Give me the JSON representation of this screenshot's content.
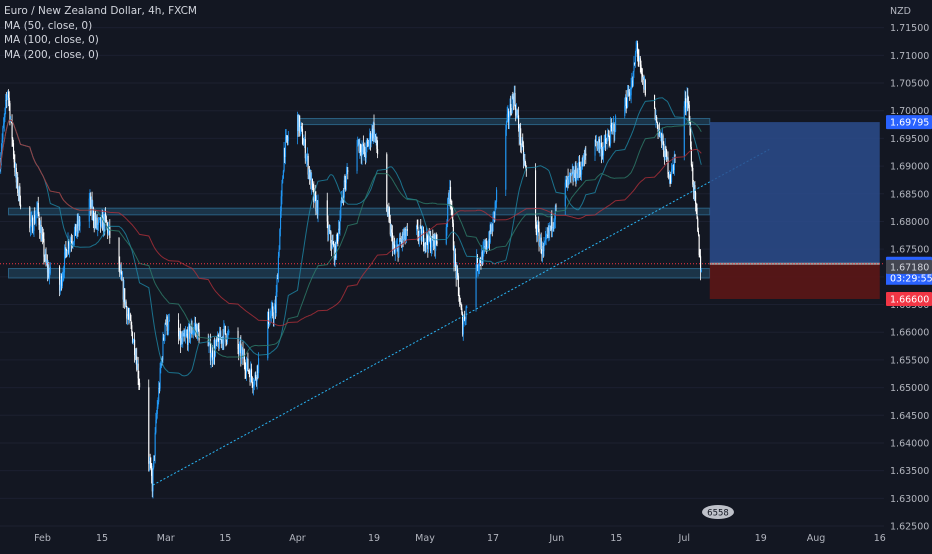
{
  "chart_data": {
    "type": "candlestick",
    "title": "Euro / New Zealand Dollar, 4h, FXCM",
    "indicators": [
      "MA (50, close, 0)",
      "MA (100, close, 0)",
      "MA (200, close, 0)"
    ],
    "currency": "NZD",
    "ylim": [
      1.625,
      1.72
    ],
    "y_ticks": [
      1.715,
      1.71,
      1.705,
      1.7,
      1.695,
      1.69,
      1.685,
      1.68,
      1.675,
      1.67,
      1.665,
      1.66,
      1.655,
      1.65,
      1.645,
      1.64,
      1.635,
      1.63,
      1.625
    ],
    "y_tick_labels": [
      "1.71500",
      "1.71000",
      "1.70500",
      "1.70000",
      "1.69500",
      "1.69000",
      "1.68500",
      "1.68000",
      "1.67500",
      "1.67000",
      "1.66500",
      "1.66000",
      "1.65500",
      "1.65000",
      "1.64500",
      "1.64000",
      "1.63500",
      "1.63000",
      "1.62500"
    ],
    "x_labels": [
      "Feb",
      "15",
      "Mar",
      "15",
      "Apr",
      "19",
      "May",
      "17",
      "Jun",
      "15",
      "Jul",
      "19",
      "Aug",
      "16"
    ],
    "x_dates": [
      "2024-02-01",
      "2024-02-15",
      "2024-03-01",
      "2024-03-15",
      "2024-04-01",
      "2024-04-19",
      "2024-05-01",
      "2024-05-17",
      "2024-06-01",
      "2024-06-15",
      "2024-07-01",
      "2024-07-19",
      "2024-08-01",
      "2024-08-16"
    ],
    "x_range": [
      "2024-01-22",
      "2024-08-17"
    ],
    "price_path": [
      [
        "2024-01-22",
        1.69
      ],
      [
        "2024-01-24",
        1.704
      ],
      [
        "2024-01-26",
        1.687
      ],
      [
        "2024-01-29",
        1.678
      ],
      [
        "2024-01-31",
        1.682
      ],
      [
        "2024-02-02",
        1.672
      ],
      [
        "2024-02-05",
        1.667
      ],
      [
        "2024-02-07",
        1.676
      ],
      [
        "2024-02-09",
        1.678
      ],
      [
        "2024-02-12",
        1.684
      ],
      [
        "2024-02-14",
        1.679
      ],
      [
        "2024-02-16",
        1.68
      ],
      [
        "2024-02-19",
        1.672
      ],
      [
        "2024-02-21",
        1.664
      ],
      [
        "2024-02-23",
        1.657
      ],
      [
        "2024-02-26",
        1.638
      ],
      [
        "2024-02-27",
        1.6324
      ],
      [
        "2024-02-28",
        1.645
      ],
      [
        "2024-03-01",
        1.662
      ],
      [
        "2024-03-05",
        1.658
      ],
      [
        "2024-03-08",
        1.661
      ],
      [
        "2024-03-12",
        1.656
      ],
      [
        "2024-03-15",
        1.66
      ],
      [
        "2024-03-19",
        1.656
      ],
      [
        "2024-03-22",
        1.651
      ],
      [
        "2024-03-25",
        1.662
      ],
      [
        "2024-03-27",
        1.664
      ],
      [
        "2024-03-29",
        1.693
      ],
      [
        "2024-04-01",
        1.699
      ],
      [
        "2024-04-03",
        1.693
      ],
      [
        "2024-04-05",
        1.684
      ],
      [
        "2024-04-08",
        1.679
      ],
      [
        "2024-04-10",
        1.674
      ],
      [
        "2024-04-12",
        1.686
      ],
      [
        "2024-04-15",
        1.695
      ],
      [
        "2024-04-17",
        1.692
      ],
      [
        "2024-04-19",
        1.697
      ],
      [
        "2024-04-22",
        1.683
      ],
      [
        "2024-04-24",
        1.674
      ],
      [
        "2024-04-26",
        1.677
      ],
      [
        "2024-04-29",
        1.678
      ],
      [
        "2024-05-01",
        1.677
      ],
      [
        "2024-05-03",
        1.676
      ],
      [
        "2024-05-06",
        1.678
      ],
      [
        "2024-05-07",
        1.687
      ],
      [
        "2024-05-08",
        1.674
      ],
      [
        "2024-05-10",
        1.6612
      ],
      [
        "2024-05-13",
        1.672
      ],
      [
        "2024-05-15",
        1.674
      ],
      [
        "2024-05-17",
        1.679
      ],
      [
        "2024-05-20",
        1.696
      ],
      [
        "2024-05-22",
        1.703
      ],
      [
        "2024-05-24",
        1.693
      ],
      [
        "2024-05-27",
        1.68
      ],
      [
        "2024-05-29",
        1.674
      ],
      [
        "2024-05-31",
        1.68
      ],
      [
        "2024-06-03",
        1.686
      ],
      [
        "2024-06-05",
        1.688
      ],
      [
        "2024-06-07",
        1.69
      ],
      [
        "2024-06-10",
        1.695
      ],
      [
        "2024-06-12",
        1.693
      ],
      [
        "2024-06-14",
        1.696
      ],
      [
        "2024-06-17",
        1.701
      ],
      [
        "2024-06-19",
        1.705
      ],
      [
        "2024-06-20",
        1.712
      ],
      [
        "2024-06-21",
        1.706
      ],
      [
        "2024-06-24",
        1.7
      ],
      [
        "2024-06-26",
        1.694
      ],
      [
        "2024-06-28",
        1.688
      ],
      [
        "2024-07-01",
        1.7
      ],
      [
        "2024-07-02",
        1.703
      ],
      [
        "2024-07-03",
        1.689
      ],
      [
        "2024-07-04",
        1.681
      ],
      [
        "2024-07-05",
        1.672
      ]
    ],
    "horizontal_zones": [
      {
        "from": "2024-04-01",
        "to": "2024-07-07",
        "low": 1.6975,
        "high": 1.6986
      },
      {
        "from": "2024-01-24",
        "to": "2024-07-07",
        "low": 1.6812,
        "high": 1.6824
      },
      {
        "from": "2024-01-24",
        "to": "2024-07-07",
        "low": 1.6698,
        "high": 1.6715
      }
    ],
    "trendline": {
      "from": [
        "2024-02-27",
        1.6324
      ],
      "to": [
        "2024-07-21",
        1.693
      ]
    },
    "position": {
      "from": "2024-07-07",
      "to": "2024-08-16",
      "target": 1.69795,
      "entry": 1.67236,
      "stop": 1.666
    },
    "current_price": 1.67236,
    "price_labels": [
      {
        "value": 1.69795,
        "text": "1.69795",
        "color": "#2962ff",
        "text_color": "#ffffff"
      },
      {
        "value": 1.67236,
        "text": "1.67236",
        "color": "#2962ff",
        "text_color": "#ffffff"
      },
      {
        "value": 1.6718,
        "text": "1.67180",
        "color": "#434651",
        "text_color": "#d1d4dc"
      },
      {
        "value": 1.666,
        "text": "1.66600",
        "color": "#f23645",
        "text_color": "#ffffff"
      }
    ],
    "countdown": "03:29:55",
    "colors": {
      "background": "#131722",
      "candle_up": "#2196f3",
      "candle_down": "#ffffff",
      "text": "#b2b5be",
      "zone_fill": "#1f3f55",
      "zone_stroke": "#2a5f80",
      "trend": "#29b6f6",
      "position_profit": "#2b4c8c",
      "position_loss": "#5c1616"
    }
  },
  "legend": {
    "title": "Euro / New Zealand Dollar, 4h, FXCM",
    "ma50": "MA (50, close, 0)",
    "ma100": "MA (100, close, 0)",
    "ma200": "MA (200, close, 0)"
  },
  "axis": {
    "currency": "NZD"
  },
  "badge": {
    "text": "6558"
  }
}
